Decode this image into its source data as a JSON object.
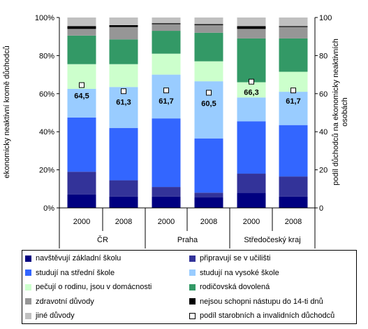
{
  "chart_data": {
    "type": "bar",
    "stacked": true,
    "groups": [
      "ČR",
      "Praha",
      "Středočeský kraj"
    ],
    "categories": [
      "2000",
      "2008",
      "2000",
      "2008",
      "2000",
      "2008"
    ],
    "ylabel": "ekonomicky neaktivní kromě důchodců",
    "ylabel_right": "podíl důchodců na ekonomicky neaktivních osobách",
    "ylim": [
      0,
      100
    ],
    "ylim_right": [
      0,
      100
    ],
    "yticks": [
      "0%",
      "20%",
      "40%",
      "60%",
      "80%",
      "100%"
    ],
    "yticks_right": [
      "0",
      "20",
      "40",
      "60",
      "80",
      "100"
    ],
    "grid": false,
    "legend_position": "bottom",
    "series": [
      {
        "name": "navštěvují základní školu",
        "color": "#000080",
        "values": [
          7,
          6,
          6,
          5.5,
          8,
          6
        ]
      },
      {
        "name": "připravují se v učilišti",
        "color": "#333399",
        "values": [
          12,
          8.5,
          5,
          2.5,
          10,
          10.5
        ]
      },
      {
        "name": "studují na střední škole",
        "color": "#3366ff",
        "values": [
          28.5,
          27.5,
          36,
          28.5,
          27.5,
          27
        ]
      },
      {
        "name": "studují na vysoké škole",
        "color": "#99ccff",
        "values": [
          15,
          21.5,
          23,
          30,
          12.5,
          17.5
        ]
      },
      {
        "name": "pečují o rodinu, jsou v domácnosti",
        "color": "#ccffcc",
        "values": [
          13,
          12,
          11,
          10.5,
          8,
          10.5
        ]
      },
      {
        "name": "rodičovská dovolená",
        "color": "#339966",
        "values": [
          15,
          13,
          12,
          15,
          23,
          17.5
        ]
      },
      {
        "name": "zdravotní důvody",
        "color": "#969696",
        "values": [
          3.5,
          6.5,
          3.5,
          4,
          5,
          6
        ]
      },
      {
        "name": "nejsou schopni nástupu do 14-ti dnů",
        "color": "#000000",
        "values": [
          1.5,
          1,
          0.5,
          0.5,
          1.5,
          0.5
        ]
      },
      {
        "name": "jiné důvody",
        "color": "#c0c0c0",
        "values": [
          4.5,
          4,
          3,
          3.5,
          4.5,
          4.5
        ]
      }
    ],
    "line_series": {
      "name": "podíl starobních a invalidních důchodců",
      "axis": "right",
      "values": [
        64.5,
        61.3,
        61.7,
        60.5,
        66.3,
        61.7
      ],
      "labels": [
        "64,5",
        "61,3",
        "61,7",
        "60,5",
        "66,3",
        "61,7"
      ]
    }
  }
}
